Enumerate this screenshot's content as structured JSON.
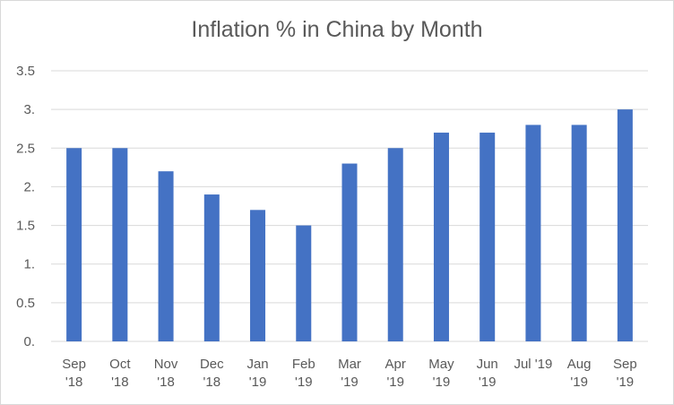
{
  "chart_data": {
    "type": "bar",
    "title": "Inflation % in China by Month",
    "xlabel": "",
    "ylabel": "",
    "categories": [
      [
        "Sep",
        "'18"
      ],
      [
        "Oct",
        "'18"
      ],
      [
        "Nov",
        "'18"
      ],
      [
        "Dec",
        "'18"
      ],
      [
        "Jan",
        "'19"
      ],
      [
        "Feb",
        "'19"
      ],
      [
        "Mar",
        "'19"
      ],
      [
        "Apr",
        "'19"
      ],
      [
        "May",
        "'19"
      ],
      [
        "Jun",
        "'19"
      ],
      [
        "Jul '19",
        ""
      ],
      [
        "Aug",
        "'19"
      ],
      [
        "Sep",
        "'19"
      ]
    ],
    "series": [
      {
        "values": [
          2.5,
          2.5,
          2.2,
          1.9,
          1.7,
          1.5,
          2.3,
          2.5,
          2.7,
          2.7,
          2.8,
          2.8,
          3.0
        ]
      }
    ],
    "ylim": [
      0,
      3.5
    ],
    "y_ticks": [
      "0.",
      "0.5",
      "1.",
      "1.5",
      "2.",
      "2.5",
      "3.",
      "3.5"
    ],
    "grid": true,
    "legend": "none",
    "colors": {
      "bar": "#4472c4",
      "grid": "#d9d9d9",
      "text": "#595959"
    }
  }
}
